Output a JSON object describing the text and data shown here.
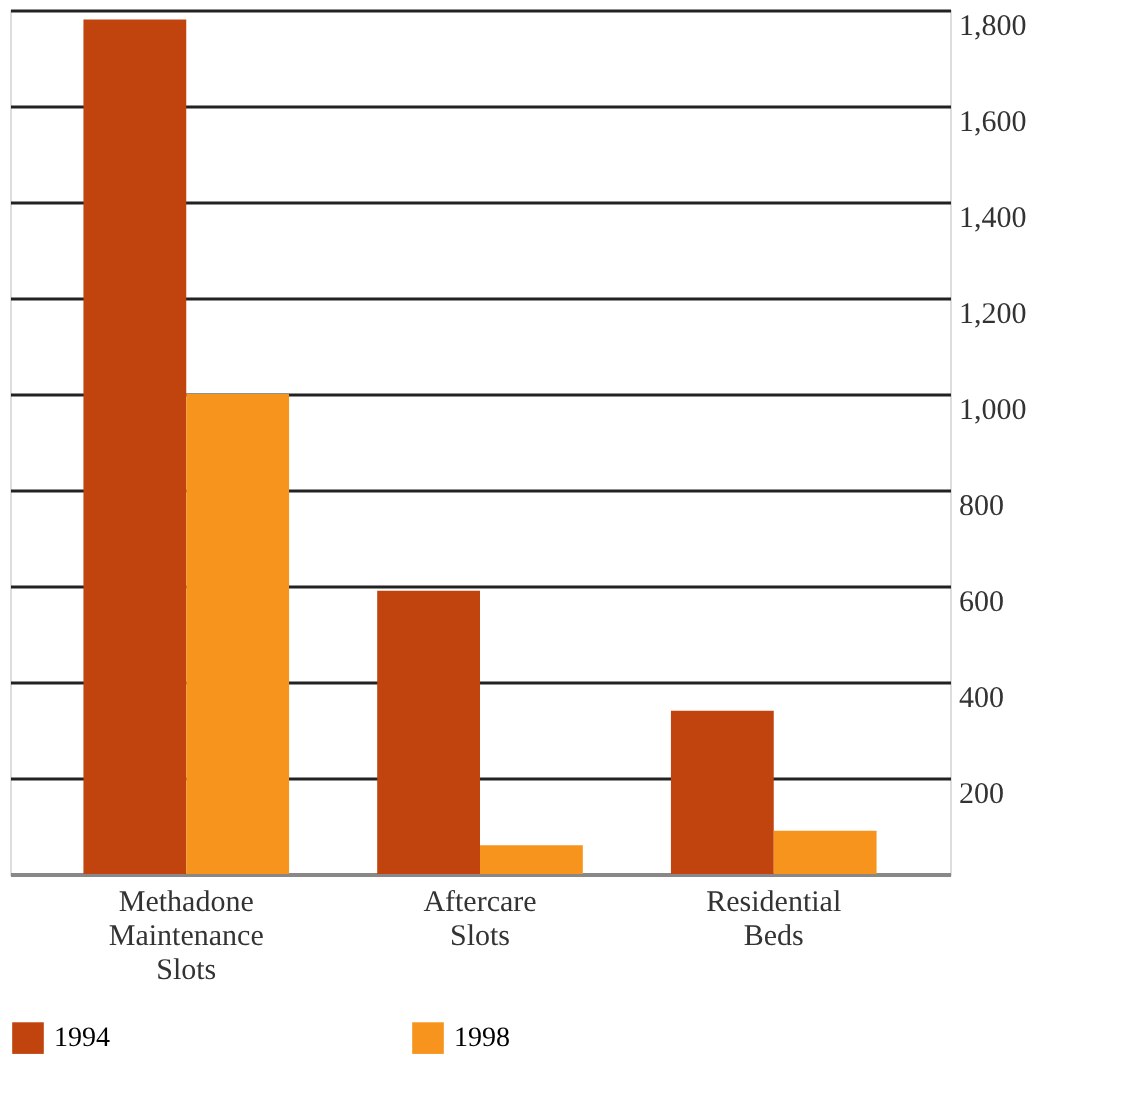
{
  "chart_data": {
    "type": "bar",
    "categories": [
      "Methadone Maintenance Slots",
      "Aftercare Slots",
      "Residential Beds"
    ],
    "series": [
      {
        "name": "1994",
        "color": "#c1440e",
        "values": [
          1780,
          590,
          340
        ]
      },
      {
        "name": "1998",
        "color": "#f7941d",
        "values": [
          1000,
          60,
          90
        ]
      }
    ],
    "ylim": [
      0,
      1800
    ],
    "yticks": [
      200,
      400,
      600,
      800,
      {
        "value": 1000,
        "label": "1,000"
      },
      {
        "value": 1200,
        "label": "1,200"
      },
      {
        "value": 1400,
        "label": "1,400"
      },
      {
        "value": 1600,
        "label": "1,600"
      },
      {
        "value": 1800,
        "label": "1,800"
      }
    ],
    "grid": "y",
    "legend": "bottom"
  }
}
